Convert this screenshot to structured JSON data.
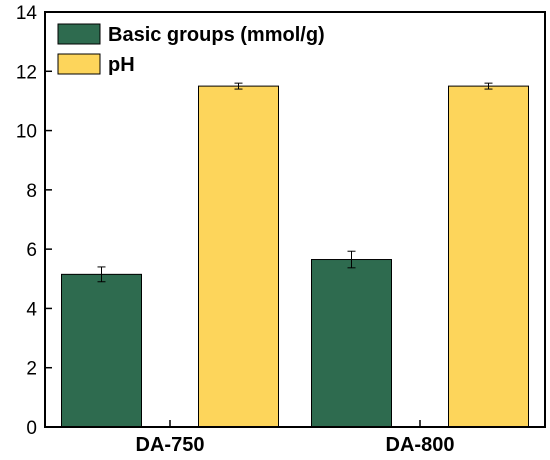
{
  "chart_data": {
    "type": "bar",
    "categories": [
      "DA-750",
      "DA-800"
    ],
    "series": [
      {
        "name": "Basic groups (mmol/g)",
        "values": [
          5.15,
          5.65
        ],
        "errors": [
          0.25,
          0.28
        ],
        "color": "#2e6b4f"
      },
      {
        "name": "pH",
        "values": [
          11.5,
          11.5
        ],
        "errors": [
          0.1,
          0.1
        ],
        "color": "#fdd55b"
      }
    ],
    "title": "",
    "xlabel": "",
    "ylabel": "",
    "ylim": [
      0,
      14
    ],
    "yticks": [
      0,
      2,
      4,
      6,
      8,
      10,
      12,
      14
    ],
    "grid": false,
    "legend": "top-left"
  }
}
